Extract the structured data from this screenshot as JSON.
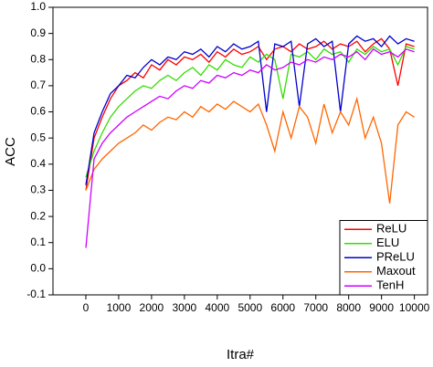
{
  "chart_data": {
    "type": "line",
    "xlabel": "Itra#",
    "ylabel": "ACC",
    "x": [
      0,
      250,
      500,
      750,
      1000,
      1250,
      1500,
      1750,
      2000,
      2250,
      2500,
      2750,
      3000,
      3250,
      3500,
      3750,
      4000,
      4250,
      4500,
      4750,
      5000,
      5250,
      5500,
      5750,
      6000,
      6250,
      6500,
      6750,
      7000,
      7250,
      7500,
      7750,
      8000,
      8250,
      8500,
      8750,
      9000,
      9250,
      9500,
      9750,
      10000
    ],
    "series": [
      {
        "name": "ReLU",
        "color": "#ff0000",
        "values": [
          0.3,
          0.5,
          0.58,
          0.65,
          0.7,
          0.72,
          0.75,
          0.73,
          0.78,
          0.76,
          0.8,
          0.78,
          0.81,
          0.8,
          0.82,
          0.79,
          0.83,
          0.81,
          0.84,
          0.82,
          0.83,
          0.85,
          0.8,
          0.84,
          0.85,
          0.83,
          0.86,
          0.84,
          0.85,
          0.87,
          0.84,
          0.86,
          0.85,
          0.87,
          0.83,
          0.86,
          0.88,
          0.84,
          0.7,
          0.86,
          0.85
        ]
      },
      {
        "name": "ELU",
        "color": "#33dd00",
        "values": [
          0.35,
          0.45,
          0.52,
          0.58,
          0.62,
          0.65,
          0.68,
          0.7,
          0.69,
          0.72,
          0.74,
          0.72,
          0.75,
          0.77,
          0.74,
          0.78,
          0.76,
          0.8,
          0.78,
          0.77,
          0.81,
          0.79,
          0.82,
          0.8,
          0.65,
          0.82,
          0.81,
          0.83,
          0.8,
          0.84,
          0.82,
          0.83,
          0.79,
          0.84,
          0.82,
          0.85,
          0.83,
          0.84,
          0.78,
          0.85,
          0.84
        ]
      },
      {
        "name": "PReLU",
        "color": "#0000cc",
        "values": [
          0.32,
          0.52,
          0.6,
          0.67,
          0.7,
          0.74,
          0.73,
          0.77,
          0.8,
          0.78,
          0.81,
          0.8,
          0.83,
          0.82,
          0.84,
          0.81,
          0.85,
          0.83,
          0.86,
          0.84,
          0.85,
          0.87,
          0.6,
          0.86,
          0.85,
          0.87,
          0.62,
          0.86,
          0.88,
          0.85,
          0.87,
          0.6,
          0.86,
          0.89,
          0.87,
          0.88,
          0.85,
          0.89,
          0.86,
          0.88,
          0.87
        ]
      },
      {
        "name": "Maxout",
        "color": "#ff6600",
        "values": [
          0.3,
          0.38,
          0.42,
          0.45,
          0.48,
          0.5,
          0.52,
          0.55,
          0.53,
          0.56,
          0.58,
          0.57,
          0.6,
          0.58,
          0.62,
          0.6,
          0.63,
          0.61,
          0.64,
          0.62,
          0.6,
          0.63,
          0.55,
          0.45,
          0.6,
          0.5,
          0.62,
          0.58,
          0.48,
          0.63,
          0.52,
          0.6,
          0.55,
          0.65,
          0.5,
          0.58,
          0.48,
          0.25,
          0.55,
          0.6,
          0.58
        ]
      },
      {
        "name": "TenH",
        "color": "#cc00ff",
        "values": [
          0.08,
          0.42,
          0.48,
          0.52,
          0.55,
          0.58,
          0.6,
          0.62,
          0.64,
          0.66,
          0.65,
          0.68,
          0.7,
          0.69,
          0.72,
          0.71,
          0.74,
          0.73,
          0.75,
          0.74,
          0.76,
          0.75,
          0.78,
          0.76,
          0.77,
          0.79,
          0.78,
          0.8,
          0.79,
          0.81,
          0.8,
          0.82,
          0.81,
          0.83,
          0.8,
          0.84,
          0.82,
          0.83,
          0.81,
          0.84,
          0.83
        ]
      }
    ],
    "xlim": [
      -1000,
      10400
    ],
    "xticks": [
      0,
      1000,
      2000,
      3000,
      4000,
      5000,
      6000,
      7000,
      8000,
      9000,
      10000
    ],
    "ylim": [
      -0.1,
      1.0
    ],
    "yticks": [
      -0.1,
      {
        "value": 0,
        "label": "0.0"
      },
      0.1,
      0.2,
      0.3,
      0.4,
      0.5,
      0.6,
      0.7,
      0.8,
      0.9,
      {
        "value": 1,
        "label": "1.0"
      }
    ],
    "legend": "lower right",
    "grid": false
  }
}
